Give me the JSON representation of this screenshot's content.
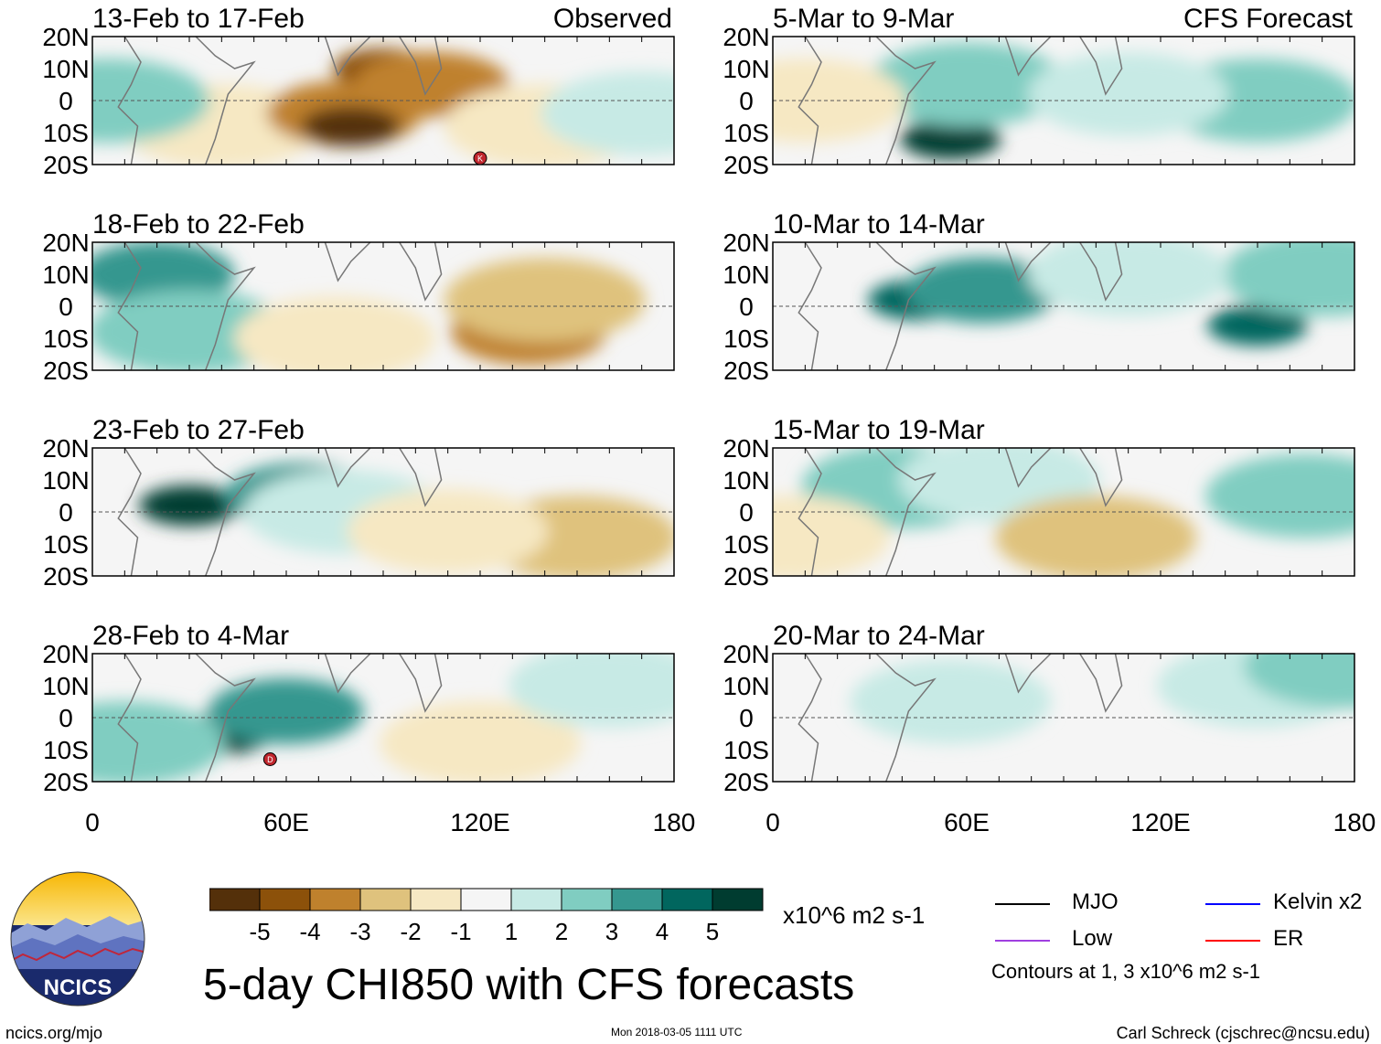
{
  "figure": {
    "title": "5-day CHI850 with CFS forecasts",
    "footer_left": "ncics.org/mjo",
    "footer_mid": "Mon 2018-03-05 1111 UTC",
    "footer_right": "Carl Schreck (cjschrec@ncsu.edu)",
    "logo_text": "NCICS"
  },
  "colorbar": {
    "unit": "x10^6 m2 s-1",
    "ticks": [
      "-5",
      "-4",
      "-3",
      "-2",
      "-1",
      "1",
      "2",
      "3",
      "4",
      "5"
    ],
    "colors": [
      "#54300a",
      "#8c510a",
      "#bf812d",
      "#dfc27d",
      "#f6e8c3",
      "#f5f5f5",
      "#c7eae5",
      "#80cdc1",
      "#35978f",
      "#01665e",
      "#003c30"
    ]
  },
  "legend": {
    "items": [
      {
        "label": "MJO",
        "color": "#000000"
      },
      {
        "label": "Kelvin x2",
        "color": "#0000ff"
      },
      {
        "label": "Low",
        "color": "#a040e0"
      },
      {
        "label": "ER",
        "color": "#ff0000"
      }
    ],
    "contour_note": "Contours at 1, 3 x10^6 m2 s-1"
  },
  "chart_data": {
    "type": "heatmap",
    "x_ticks": [
      "0",
      "60E",
      "120E",
      "180"
    ],
    "y_ticks": [
      "20N",
      "10N",
      "0",
      "10S",
      "20S"
    ],
    "xlim": [
      0,
      180
    ],
    "ylim": [
      -20,
      20
    ],
    "columns": [
      {
        "header": "Observed",
        "panels": [
          {
            "period": "13-Feb to 17-Feb",
            "anomalies": [
              {
                "lon": 40,
                "lat": -8,
                "value": -1
              },
              {
                "lon": 78,
                "lat": -4,
                "value": -3
              },
              {
                "lon": 90,
                "lat": 10,
                "value": -4
              },
              {
                "lon": 80,
                "lat": -8,
                "value": -5
              },
              {
                "lon": 105,
                "lat": 5,
                "value": -3
              },
              {
                "lon": 140,
                "lat": -8,
                "value": -1
              },
              {
                "lon": 5,
                "lat": 0,
                "value": 2
              },
              {
                "lon": 170,
                "lat": -4,
                "value": 1
              }
            ],
            "markers": [
              "K"
            ]
          },
          {
            "period": "18-Feb to 22-Feb",
            "anomalies": [
              {
                "lon": 20,
                "lat": 10,
                "value": 3
              },
              {
                "lon": 30,
                "lat": -8,
                "value": 2
              },
              {
                "lon": 135,
                "lat": -8,
                "value": -3
              },
              {
                "lon": 140,
                "lat": 2,
                "value": -2
              },
              {
                "lon": 75,
                "lat": -10,
                "value": -1
              }
            ],
            "markers": []
          },
          {
            "period": "23-Feb to 27-Feb",
            "anomalies": [
              {
                "lon": 30,
                "lat": 2,
                "value": 5
              },
              {
                "lon": 65,
                "lat": 5,
                "value": 3
              },
              {
                "lon": 78,
                "lat": 0,
                "value": 1
              },
              {
                "lon": 150,
                "lat": -8,
                "value": -2
              },
              {
                "lon": 110,
                "lat": -6,
                "value": -1
              }
            ],
            "markers": []
          },
          {
            "period": "28-Feb to 4-Mar",
            "anomalies": [
              {
                "lon": 40,
                "lat": -5,
                "value": 5
              },
              {
                "lon": 60,
                "lat": 2,
                "value": 3
              },
              {
                "lon": 10,
                "lat": -8,
                "value": 2
              },
              {
                "lon": 120,
                "lat": -8,
                "value": -1
              },
              {
                "lon": 160,
                "lat": 10,
                "value": 1
              }
            ],
            "markers": [
              "D"
            ]
          }
        ]
      },
      {
        "header": "CFS Forecast",
        "panels": [
          {
            "period": "5-Mar to 9-Mar",
            "anomalies": [
              {
                "lon": 55,
                "lat": -12,
                "value": 5
              },
              {
                "lon": 60,
                "lat": 5,
                "value": 2
              },
              {
                "lon": 150,
                "lat": 0,
                "value": 2
              },
              {
                "lon": 110,
                "lat": 2,
                "value": 1
              },
              {
                "lon": 10,
                "lat": 0,
                "value": -1
              }
            ],
            "markers": []
          },
          {
            "period": "10-Mar to 14-Mar",
            "anomalies": [
              {
                "lon": 45,
                "lat": 2,
                "value": 4
              },
              {
                "lon": 65,
                "lat": 5,
                "value": 3
              },
              {
                "lon": 150,
                "lat": -6,
                "value": 4
              },
              {
                "lon": 170,
                "lat": 10,
                "value": 2
              },
              {
                "lon": 110,
                "lat": 10,
                "value": 1
              }
            ],
            "markers": []
          },
          {
            "period": "15-Mar to 19-Mar",
            "anomalies": [
              {
                "lon": 40,
                "lat": 8,
                "value": 2
              },
              {
                "lon": 70,
                "lat": 10,
                "value": 1
              },
              {
                "lon": 100,
                "lat": -8,
                "value": -2
              },
              {
                "lon": 165,
                "lat": 5,
                "value": 2
              },
              {
                "lon": 5,
                "lat": -8,
                "value": -1
              }
            ],
            "markers": []
          },
          {
            "period": "20-Mar to 24-Mar",
            "anomalies": [
              {
                "lon": 55,
                "lat": 5,
                "value": 1
              },
              {
                "lon": 150,
                "lat": 10,
                "value": 1
              },
              {
                "lon": 177,
                "lat": 16,
                "value": 2
              }
            ],
            "markers": []
          }
        ]
      }
    ]
  }
}
